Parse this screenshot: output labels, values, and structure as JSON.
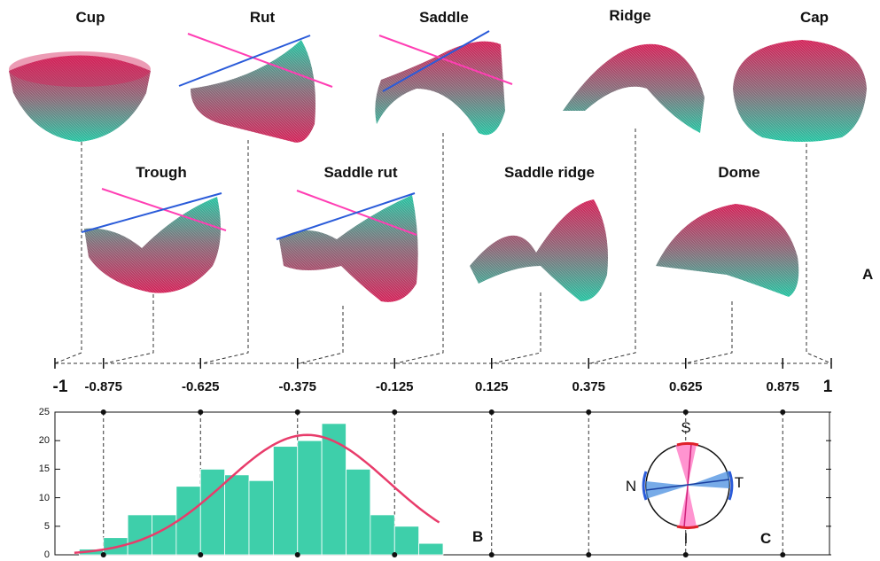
{
  "panel_labels": {
    "a": "A",
    "b": "B",
    "c": "C"
  },
  "shapes": [
    {
      "name": "Cup",
      "value": -0.9375
    },
    {
      "name": "Trough",
      "value": -0.75
    },
    {
      "name": "Rut",
      "value": -0.5625
    },
    {
      "name": "Saddle rut",
      "value": -0.25
    },
    {
      "name": "Saddle",
      "value": -0.0625
    },
    {
      "name": "Saddle ridge",
      "value": 0.25
    },
    {
      "name": "Ridge",
      "value": 0.5
    },
    {
      "name": "Dome",
      "value": 0.75
    },
    {
      "name": "Cap",
      "value": 0.9375
    }
  ],
  "shape_index_axis": {
    "ticks": [
      "-1",
      "-0.875",
      "-0.625",
      "-0.375",
      "-0.125",
      "0.125",
      "0.375",
      "0.625",
      "0.875",
      "1"
    ],
    "range": [
      -1,
      1
    ]
  },
  "chart_data": {
    "type": "bar",
    "x_range": [
      -1,
      1
    ],
    "bin_width": 0.0625,
    "bin_starts": [
      -0.9375,
      -0.875,
      -0.8125,
      -0.75,
      -0.6875,
      -0.625,
      -0.5625,
      -0.5,
      -0.4375,
      -0.375,
      -0.3125,
      -0.25,
      -0.1875,
      -0.125,
      -0.0625,
      0.0
    ],
    "values": [
      1,
      3,
      7,
      7,
      12,
      15,
      14,
      13,
      19,
      20,
      23,
      15,
      7,
      5,
      2,
      0
    ],
    "ylim": [
      0,
      25
    ],
    "yticks": [
      "0",
      "5",
      "10",
      "15",
      "20",
      "25"
    ],
    "fit_curve": {
      "type": "gaussian",
      "mean": -0.35,
      "sd": 0.21,
      "peak": 21
    },
    "colors": {
      "bars": "#3ecfaa",
      "fit": "#e83c6b"
    }
  },
  "compass": {
    "labels": {
      "top": "S",
      "right": "T",
      "bottom": "I",
      "left": "N"
    },
    "colors": {
      "pink": "#ff70c0",
      "blue": "#4a8fe0",
      "red_arc": "#e0202a"
    }
  },
  "colors": {
    "mesh_top": "#d4245a",
    "mesh_bottom": "#27c4a2",
    "line_blue": "#2a5bd9",
    "line_pink": "#ff3fb4"
  }
}
